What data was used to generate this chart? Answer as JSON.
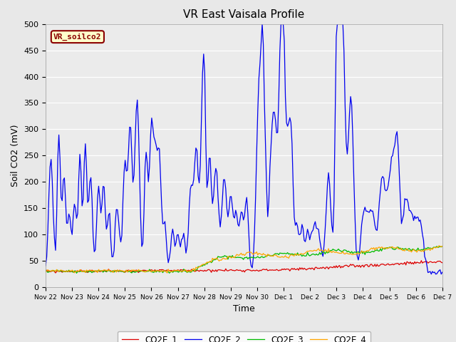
{
  "title": "VR East Vaisala Profile",
  "ylabel": "Soil CO2 (mV)",
  "xlabel": "Time",
  "ylim": [
    0,
    500
  ],
  "yticks": [
    0,
    50,
    100,
    150,
    200,
    250,
    300,
    350,
    400,
    450,
    500
  ],
  "watermark": "VR_soilco2",
  "watermark_color": "#8B0000",
  "watermark_bg": "#FFFFCC",
  "legend_labels": [
    "CO2E_1",
    "CO2E_2",
    "CO2E_3",
    "CO2E_4"
  ],
  "line_colors": [
    "#DD0000",
    "#0000EE",
    "#00BB00",
    "#FFA500"
  ],
  "bg_color": "#E8E8E8",
  "plot_bg_color": "#EBEBEB",
  "grid_color": "#FFFFFF",
  "start_day": 0,
  "end_day": 15,
  "tick_dates": [
    "Nov 22",
    "Nov 23",
    "Nov 24",
    "Nov 25",
    "Nov 26",
    "Nov 27",
    "Nov 28",
    "Nov 29",
    "Nov 30",
    "Dec 1",
    "Dec 2",
    "Dec 3",
    "Dec 4",
    "Dec 5",
    "Dec 6",
    "Dec 7"
  ]
}
